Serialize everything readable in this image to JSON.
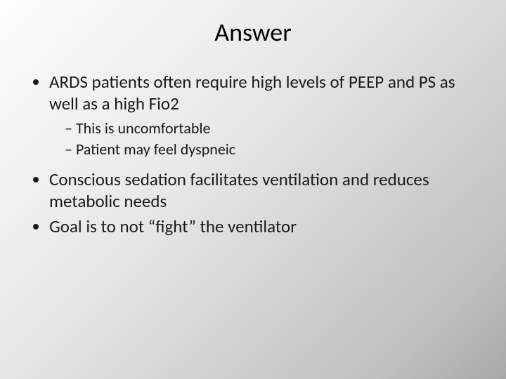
{
  "slide": {
    "title": "Answer",
    "title_fontsize": 36,
    "body_fontsize": 25,
    "sub_fontsize": 22,
    "text_color": "#1a1a1a",
    "background_gradient": [
      "#fdfdfd",
      "#e8e8e8",
      "#c0c0c0",
      "#a8a8a8"
    ],
    "bullets": [
      {
        "text": "ARDS patients often require high levels of PEEP and PS as well as a high Fio2",
        "sub": [
          "This is uncomfortable",
          "Patient may feel dyspneic"
        ]
      },
      {
        "text": "Conscious sedation facilitates ventilation and reduces metabolic needs",
        "sub": []
      },
      {
        "text": "Goal is to not “fight” the ventilator",
        "sub": []
      }
    ]
  }
}
